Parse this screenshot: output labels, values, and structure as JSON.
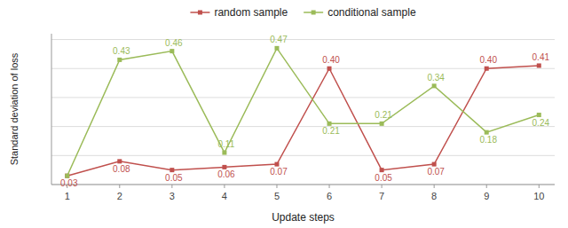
{
  "chart_data": {
    "type": "line",
    "x": [
      1,
      2,
      3,
      4,
      5,
      6,
      7,
      8,
      9,
      10
    ],
    "series": [
      {
        "name": "random sample",
        "color": "#c0504d",
        "marker": "square",
        "values": [
          0.03,
          0.08,
          0.05,
          0.06,
          0.07,
          0.4,
          0.05,
          0.07,
          0.4,
          0.41
        ],
        "value_labels": [
          "0.03",
          "0.08",
          "0.05",
          "0.06",
          "0.07",
          "0.40",
          "0.05",
          "0.07",
          "0.40",
          "0.41"
        ]
      },
      {
        "name": "conditional sample",
        "color": "#9bbb59",
        "marker": "square",
        "values": [
          0.03,
          0.43,
          0.46,
          0.11,
          0.47,
          0.21,
          0.21,
          0.34,
          0.18,
          0.24
        ],
        "value_labels": [
          null,
          "0.43",
          "0.46",
          "0.11",
          "0.47",
          "0.21",
          "0.21",
          "0.34",
          "0.18",
          "0.24"
        ]
      }
    ],
    "x_label": "Update steps",
    "y_label": "Standard deviation of loss",
    "xlim": [
      0.7,
      10.3
    ],
    "xticks": [
      1,
      2,
      3,
      4,
      5,
      6,
      7,
      8,
      9,
      10
    ],
    "ylim": [
      0.0,
      0.52
    ],
    "yticks": [
      0,
      0.1,
      0.2,
      0.3,
      0.4,
      0.5
    ],
    "grid": true,
    "legend": "top",
    "data_labels": true,
    "tick_labels": "x"
  }
}
